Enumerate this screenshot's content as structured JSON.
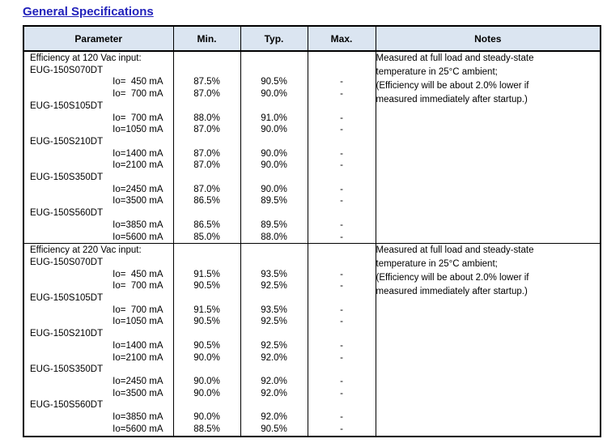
{
  "page": {
    "title": "General Specifications"
  },
  "colors": {
    "title": "#2222bb",
    "header_bg": "#dbe5f1",
    "border": "#000000"
  },
  "table": {
    "headers": [
      "Parameter",
      "Min.",
      "Typ.",
      "Max.",
      "Notes"
    ],
    "sections": [
      {
        "heading": "Efficiency at 120 Vac input:",
        "note_lines": [
          "Measured at full load and steady-state",
          "temperature in 25°C ambient;",
          "(Efficiency will be about 2.0% lower if",
          "measured immediately after startup.)"
        ],
        "groups": [
          {
            "model": "EUG-150S070DT",
            "rows": [
              {
                "param": "Io=  450 mA",
                "min": "87.5%",
                "typ": "90.5%",
                "max": "-"
              },
              {
                "param": "Io=  700 mA",
                "min": "87.0%",
                "typ": "90.0%",
                "max": "-"
              }
            ]
          },
          {
            "model": "EUG-150S105DT",
            "rows": [
              {
                "param": "Io=  700 mA",
                "min": "88.0%",
                "typ": "91.0%",
                "max": "-"
              },
              {
                "param": "Io=1050 mA",
                "min": "87.0%",
                "typ": "90.0%",
                "max": "-"
              }
            ]
          },
          {
            "model": "EUG-150S210DT",
            "rows": [
              {
                "param": "Io=1400 mA",
                "min": "87.0%",
                "typ": "90.0%",
                "max": "-"
              },
              {
                "param": "Io=2100 mA",
                "min": "87.0%",
                "typ": "90.0%",
                "max": "-"
              }
            ]
          },
          {
            "model": "EUG-150S350DT",
            "rows": [
              {
                "param": "Io=2450 mA",
                "min": "87.0%",
                "typ": "90.0%",
                "max": "-"
              },
              {
                "param": "Io=3500 mA",
                "min": "86.5%",
                "typ": "89.5%",
                "max": "-"
              }
            ]
          },
          {
            "model": "EUG-150S560DT",
            "rows": [
              {
                "param": "Io=3850 mA",
                "min": "86.5%",
                "typ": "89.5%",
                "max": "-"
              },
              {
                "param": "Io=5600 mA",
                "min": "85.0%",
                "typ": "88.0%",
                "max": "-"
              }
            ]
          }
        ]
      },
      {
        "heading": "Efficiency at 220 Vac input:",
        "note_lines": [
          "Measured at full load and steady-state",
          "temperature in 25°C ambient;",
          "(Efficiency will be about 2.0% lower if",
          "measured immediately after startup.)"
        ],
        "groups": [
          {
            "model": "EUG-150S070DT",
            "rows": [
              {
                "param": "Io=  450 mA",
                "min": "91.5%",
                "typ": "93.5%",
                "max": "-"
              },
              {
                "param": "Io=  700 mA",
                "min": "90.5%",
                "typ": "92.5%",
                "max": "-"
              }
            ]
          },
          {
            "model": "EUG-150S105DT",
            "rows": [
              {
                "param": "Io=  700 mA",
                "min": "91.5%",
                "typ": "93.5%",
                "max": "-"
              },
              {
                "param": "Io=1050 mA",
                "min": "90.5%",
                "typ": "92.5%",
                "max": "-"
              }
            ]
          },
          {
            "model": "EUG-150S210DT",
            "rows": [
              {
                "param": "Io=1400 mA",
                "min": "90.5%",
                "typ": "92.5%",
                "max": "-"
              },
              {
                "param": "Io=2100 mA",
                "min": "90.0%",
                "typ": "92.0%",
                "max": "-"
              }
            ]
          },
          {
            "model": "EUG-150S350DT",
            "rows": [
              {
                "param": "Io=2450 mA",
                "min": "90.0%",
                "typ": "92.0%",
                "max": "-"
              },
              {
                "param": "Io=3500 mA",
                "min": "90.0%",
                "typ": "92.0%",
                "max": "-"
              }
            ]
          },
          {
            "model": "EUG-150S560DT",
            "rows": [
              {
                "param": "Io=3850 mA",
                "min": "90.0%",
                "typ": "92.0%",
                "max": "-"
              },
              {
                "param": "Io=5600 mA",
                "min": "88.5%",
                "typ": "90.5%",
                "max": "-"
              }
            ]
          }
        ]
      }
    ]
  }
}
